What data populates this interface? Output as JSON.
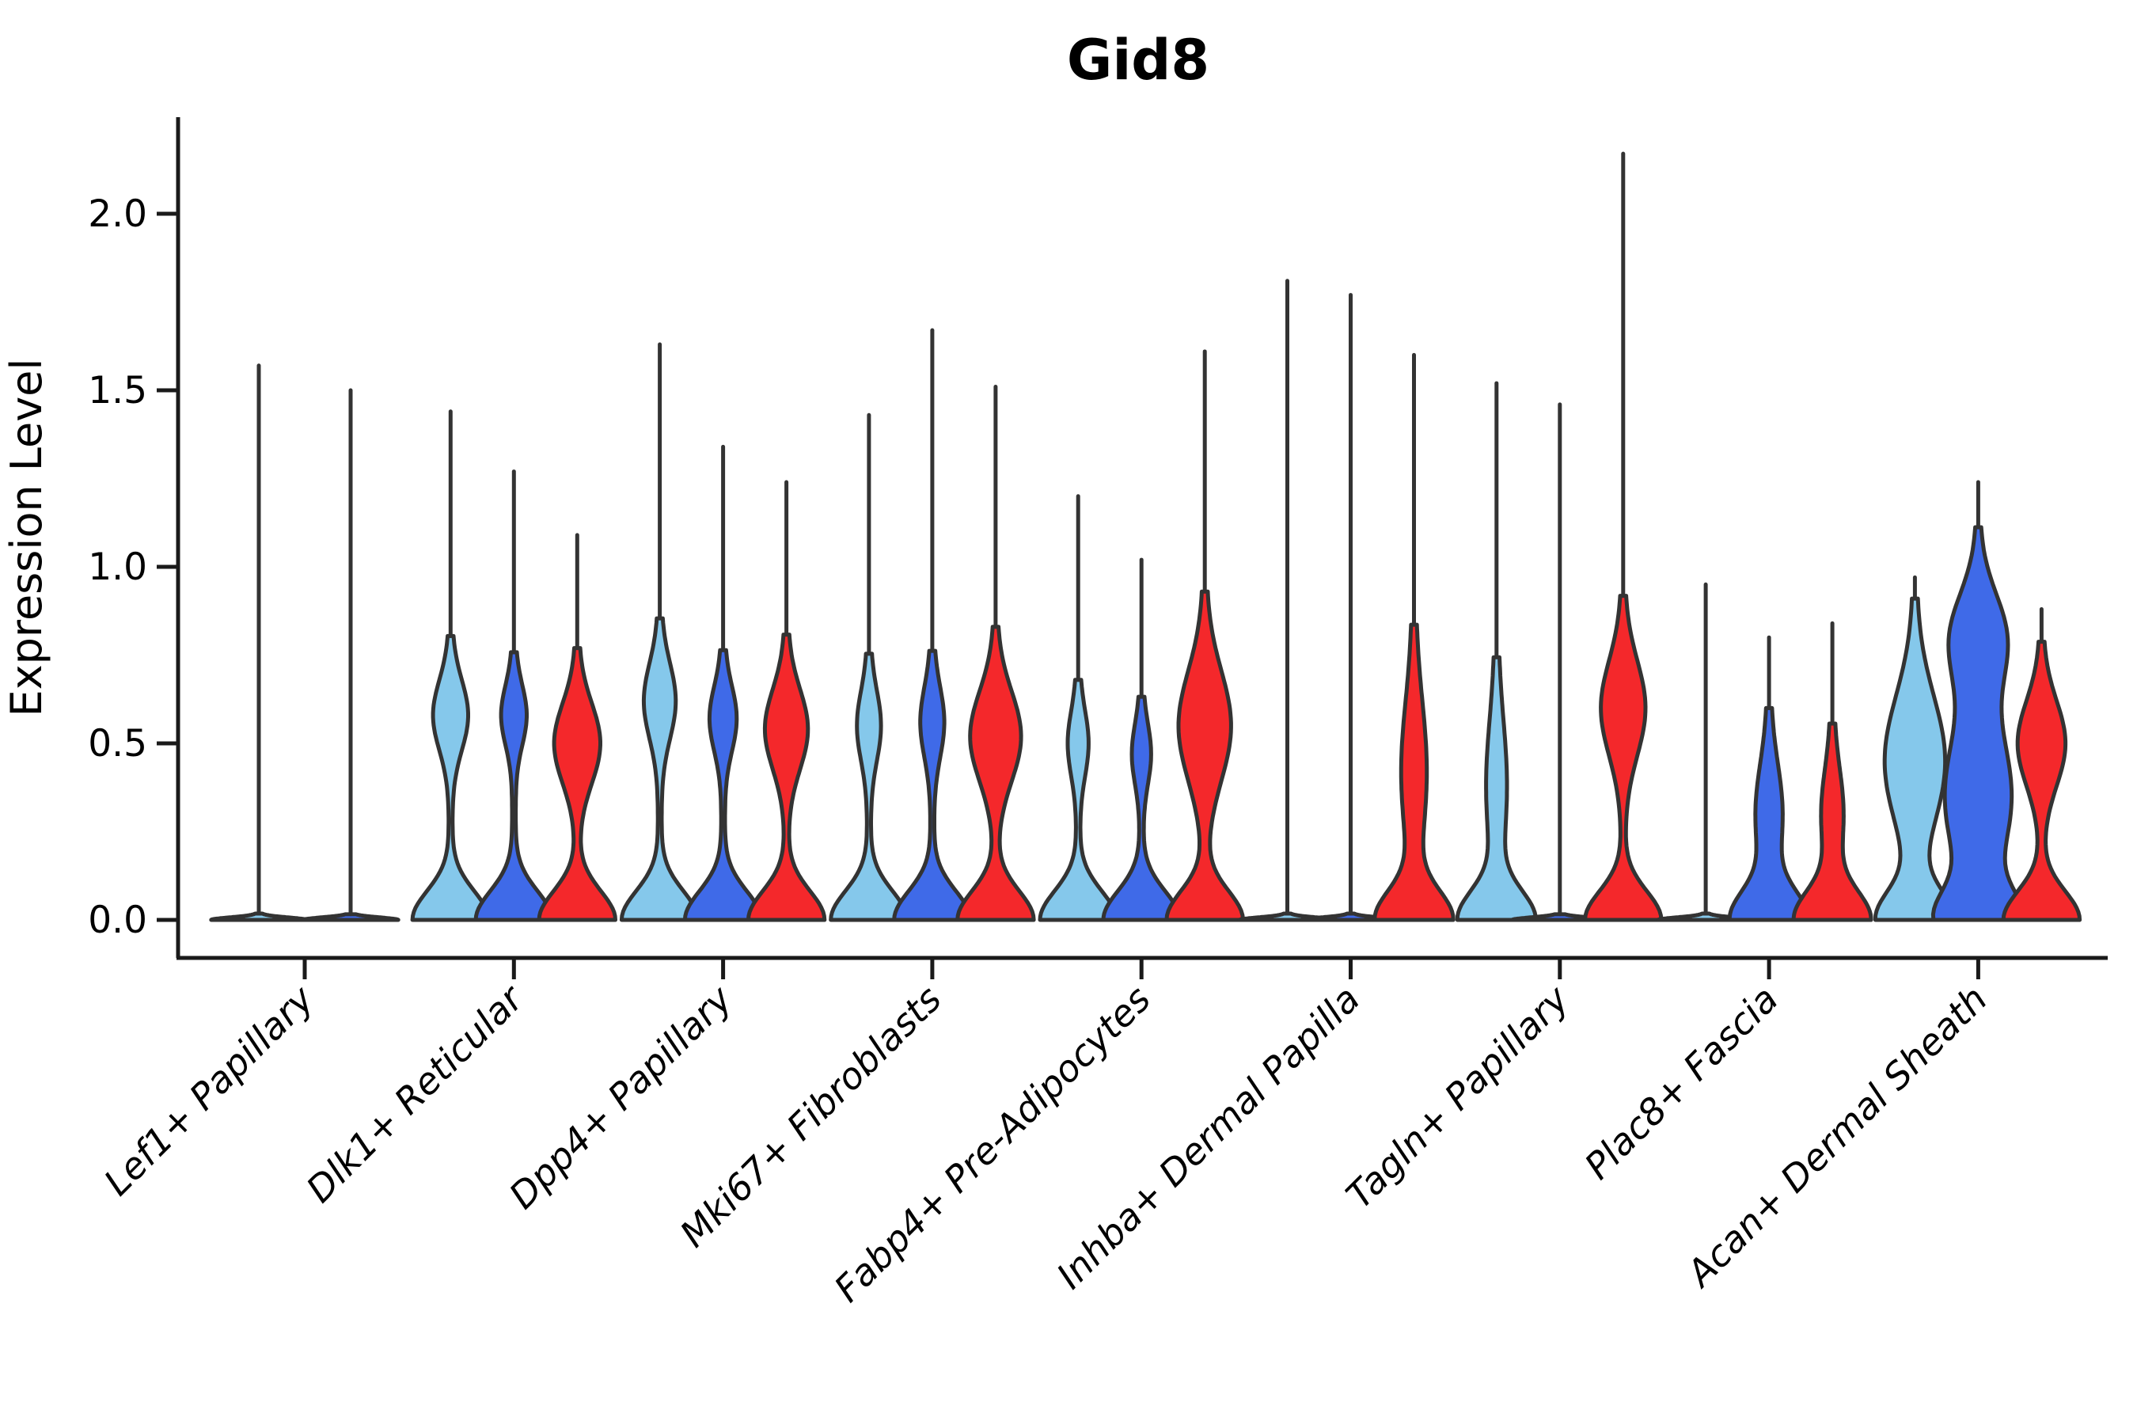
{
  "title": "Gid8",
  "y_axis": {
    "label": "Expression Level",
    "tick_labels": [
      "0.0",
      "0.5",
      "1.0",
      "1.5",
      "2.0"
    ]
  },
  "colors": {
    "split_a": "#85C8EB",
    "split_b": "#3F6AE8",
    "split_c": "#F4282B",
    "outline": "#333333",
    "axis": "#1a1a1a",
    "text": "#000000"
  },
  "chart_data": {
    "type": "violin",
    "title": "Gid8",
    "xlabel": "",
    "ylabel": "Expression Level",
    "ylim": [
      -0.11,
      2.35
    ],
    "yticks": [
      0.0,
      0.5,
      1.0,
      1.5,
      2.0
    ],
    "grid": false,
    "legend": "none",
    "split_order": [
      "split_a",
      "split_b",
      "split_c"
    ],
    "categories": [
      "Lef1+ Papillary",
      "Dlk1+ Reticular",
      "Dpp4+ Papillary",
      "Mki67+ Fibroblasts",
      "Fabp4+ Pre-Adipocytes",
      "Inhba+ Dermal Papilla",
      "Tagln+ Papillary",
      "Plac8+ Fascia",
      "Acan+ Dermal Sheath"
    ],
    "groups": [
      {
        "category": "Lef1+ Papillary",
        "violins": [
          {
            "split": "split_a",
            "max": 1.57,
            "offset": -58,
            "components": [
              [
                58,
                0,
                0.01
              ]
            ]
          },
          {
            "split": "split_b",
            "max": 1.5,
            "offset": 58,
            "components": [
              [
                58,
                0,
                0.01
              ]
            ]
          }
        ]
      },
      {
        "category": "Dlk1+ Reticular",
        "violins": [
          {
            "split": "split_a",
            "max": 1.44,
            "offset": -80,
            "components": [
              [
                46,
                0,
                0.115
              ],
              [
                20,
                0.58,
                0.14
              ]
            ]
          },
          {
            "split": "split_b",
            "max": 1.27,
            "offset": 0,
            "components": [
              [
                46,
                0,
                0.115
              ],
              [
                14,
                0.58,
                0.12
              ]
            ]
          },
          {
            "split": "split_c",
            "max": 1.09,
            "offset": 80,
            "components": [
              [
                46,
                0,
                0.115
              ],
              [
                27,
                0.5,
                0.16
              ]
            ]
          }
        ]
      },
      {
        "category": "Dpp4+ Papillary",
        "violins": [
          {
            "split": "split_a",
            "max": 1.63,
            "offset": -80,
            "components": [
              [
                46,
                0,
                0.115
              ],
              [
                18,
                0.62,
                0.15
              ]
            ]
          },
          {
            "split": "split_b",
            "max": 1.34,
            "offset": 0,
            "components": [
              [
                46,
                0,
                0.115
              ],
              [
                15,
                0.57,
                0.13
              ]
            ]
          },
          {
            "split": "split_c",
            "max": 1.24,
            "offset": 80,
            "components": [
              [
                46,
                0,
                0.115
              ],
              [
                25,
                0.54,
                0.16
              ]
            ]
          }
        ]
      },
      {
        "category": "Mki67+ Fibroblasts",
        "violins": [
          {
            "split": "split_a",
            "max": 1.43,
            "offset": -80,
            "components": [
              [
                46,
                0,
                0.115
              ],
              [
                13,
                0.55,
                0.14
              ]
            ]
          },
          {
            "split": "split_b",
            "max": 1.67,
            "offset": 0,
            "components": [
              [
                46,
                0,
                0.115
              ],
              [
                13,
                0.56,
                0.14
              ]
            ]
          },
          {
            "split": "split_c",
            "max": 1.51,
            "offset": 80,
            "components": [
              [
                46,
                0,
                0.115
              ],
              [
                30,
                0.52,
                0.18
              ]
            ]
          }
        ]
      },
      {
        "category": "Fabp4+ Pre-Adipocytes",
        "violins": [
          {
            "split": "split_a",
            "max": 1.2,
            "offset": -80,
            "components": [
              [
                46,
                0,
                0.115
              ],
              [
                11,
                0.5,
                0.13
              ]
            ]
          },
          {
            "split": "split_b",
            "max": 1.02,
            "offset": 0,
            "components": [
              [
                46,
                0,
                0.115
              ],
              [
                10,
                0.47,
                0.12
              ]
            ]
          },
          {
            "split": "split_c",
            "max": 1.61,
            "offset": 80,
            "components": [
              [
                46,
                0,
                0.115
              ],
              [
                31,
                0.55,
                0.22
              ]
            ]
          }
        ]
      },
      {
        "category": "Inhba+ Dermal Papilla",
        "violins": [
          {
            "split": "split_a",
            "max": 1.81,
            "offset": -80,
            "components": [
              [
                58,
                0,
                0.01
              ]
            ]
          },
          {
            "split": "split_b",
            "max": 1.77,
            "offset": 0,
            "components": [
              [
                58,
                0,
                0.01
              ]
            ]
          },
          {
            "split": "split_c",
            "max": 1.6,
            "offset": 80,
            "components": [
              [
                46,
                0,
                0.115
              ],
              [
                14,
                0.42,
                0.28
              ]
            ]
          }
        ]
      },
      {
        "category": "Tagln+ Papillary",
        "violins": [
          {
            "split": "split_a",
            "max": 1.52,
            "offset": -80,
            "components": [
              [
                46,
                0,
                0.115
              ],
              [
                11,
                0.38,
                0.26
              ]
            ]
          },
          {
            "split": "split_b",
            "max": 1.46,
            "offset": 0,
            "components": [
              [
                58,
                0,
                0.01
              ]
            ]
          },
          {
            "split": "split_c",
            "max": 2.17,
            "offset": 80,
            "components": [
              [
                46,
                0,
                0.115
              ],
              [
                26,
                0.6,
                0.19
              ]
            ]
          }
        ]
      },
      {
        "category": "Plac8+ Fascia",
        "violins": [
          {
            "split": "split_a",
            "max": 0.95,
            "offset": -80,
            "components": [
              [
                58,
                0,
                0.01
              ]
            ]
          },
          {
            "split": "split_b",
            "max": 0.8,
            "offset": 0,
            "components": [
              [
                46,
                0,
                0.115
              ],
              [
                15,
                0.3,
                0.2
              ]
            ]
          },
          {
            "split": "split_c",
            "max": 0.84,
            "offset": 80,
            "components": [
              [
                46,
                0,
                0.115
              ],
              [
                12,
                0.3,
                0.18
              ]
            ]
          }
        ]
      },
      {
        "category": "Acan+ Dermal Sheath",
        "violins": [
          {
            "split": "split_a",
            "max": 0.97,
            "offset": -80,
            "components": [
              [
                46,
                0,
                0.115
              ],
              [
                36,
                0.45,
                0.26
              ]
            ]
          },
          {
            "split": "split_b",
            "max": 1.24,
            "offset": 0,
            "components": [
              [
                46,
                0,
                0.115
              ],
              [
                40,
                0.35,
                0.28
              ],
              [
                32,
                0.8,
                0.18
              ]
            ]
          },
          {
            "split": "split_c",
            "max": 0.88,
            "offset": 80,
            "components": [
              [
                46,
                0,
                0.115
              ],
              [
                28,
                0.5,
                0.17
              ]
            ]
          }
        ]
      }
    ]
  }
}
